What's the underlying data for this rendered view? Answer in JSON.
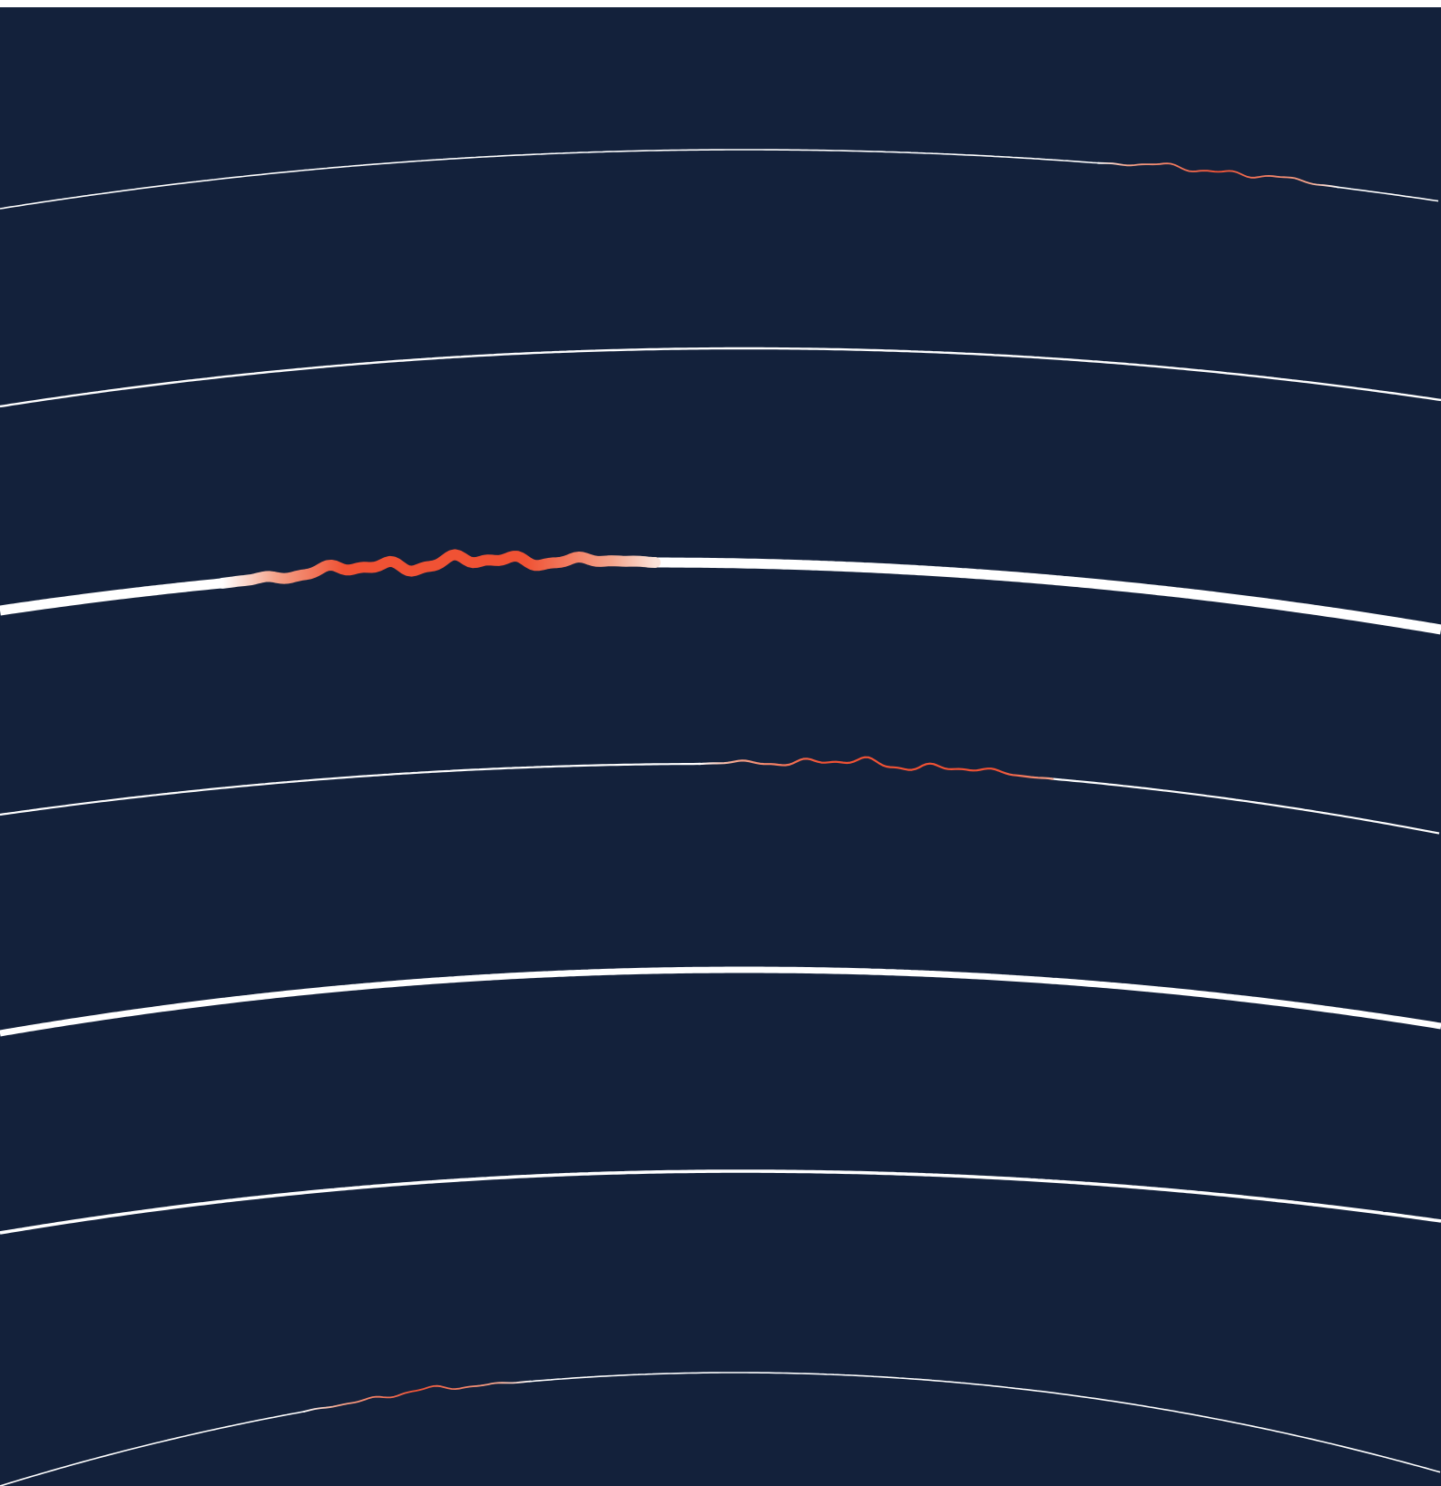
{
  "colors": {
    "background": "#13213b",
    "page_border": "#ffffff",
    "line": "#ffffff",
    "accent": "#f05234",
    "accent_light": "#f4a58c"
  },
  "lines": [
    {
      "name": "arc-line-1",
      "has_disturbance": true,
      "disturbance_intensity": "low"
    },
    {
      "name": "arc-line-2",
      "has_disturbance": false
    },
    {
      "name": "arc-line-3",
      "has_disturbance": true,
      "disturbance_intensity": "high"
    },
    {
      "name": "arc-line-4",
      "has_disturbance": true,
      "disturbance_intensity": "medium"
    },
    {
      "name": "arc-line-5",
      "has_disturbance": false
    },
    {
      "name": "arc-line-6",
      "has_disturbance": false
    },
    {
      "name": "arc-line-7",
      "has_disturbance": true,
      "disturbance_intensity": "low"
    }
  ]
}
